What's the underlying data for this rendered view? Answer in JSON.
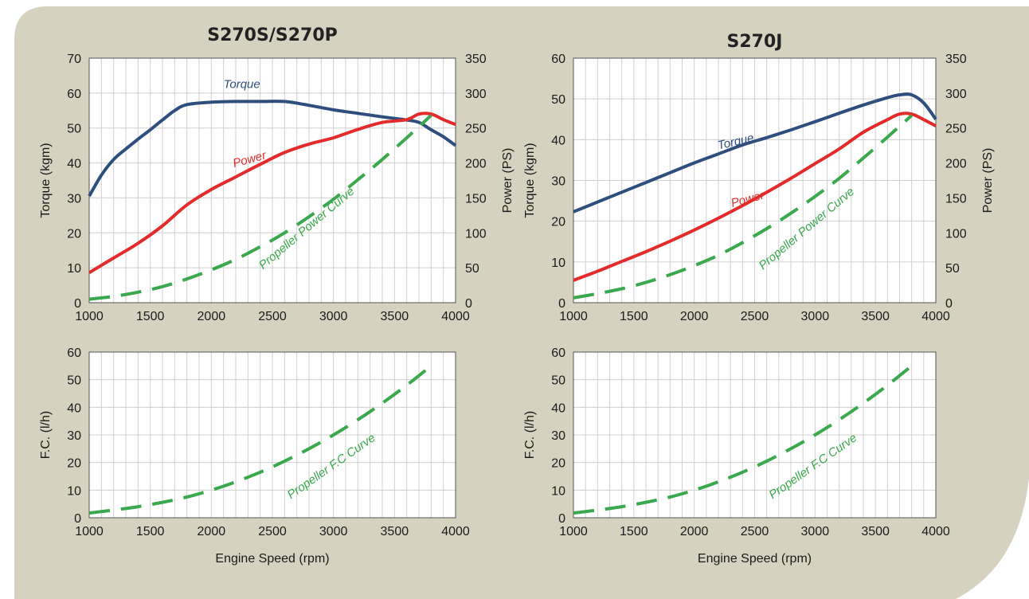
{
  "colors": {
    "panel_bg": "#d6d2c0",
    "plot_bg": "#ffffff",
    "grid": "#d0d0d0",
    "torque": "#2e4e7e",
    "power": "#e32b2b",
    "propeller": "#3aa84d",
    "text": "#1a1a1a"
  },
  "titles": {
    "left": "S270S/S270P",
    "right": "S270J"
  },
  "chart_data": [
    {
      "type": "line",
      "title": "S270S/S270P",
      "xlabel": "",
      "ylabel": "Torque (kgm)",
      "y2label": "Power (PS)",
      "xlim": [
        1000,
        4000
      ],
      "xticks": [
        1000,
        1500,
        2000,
        2500,
        3000,
        3500,
        4000
      ],
      "ylim": [
        0,
        70
      ],
      "yticks": [
        0,
        10,
        20,
        30,
        40,
        50,
        60,
        70
      ],
      "y2lim": [
        0,
        350
      ],
      "y2ticks": [
        0,
        50,
        100,
        150,
        200,
        250,
        300,
        350
      ],
      "grid": true,
      "series": [
        {
          "name": "Torque",
          "axis": "left",
          "style": "solid",
          "color_key": "torque",
          "x": [
            1000,
            1100,
            1200,
            1300,
            1400,
            1500,
            1600,
            1700,
            1800,
            2000,
            2200,
            2400,
            2600,
            2800,
            3000,
            3200,
            3400,
            3600,
            3700,
            3800,
            3900,
            4000
          ],
          "y": [
            30.5,
            36.5,
            41,
            44,
            46.8,
            49.5,
            52.3,
            55,
            56.7,
            57.4,
            57.6,
            57.6,
            57.6,
            56.5,
            55.2,
            54.2,
            53.2,
            52.3,
            51.6,
            49.5,
            47.5,
            45
          ]
        },
        {
          "name": "Power",
          "axis": "right",
          "style": "solid",
          "color_key": "power",
          "x": [
            1000,
            1200,
            1400,
            1600,
            1800,
            2000,
            2200,
            2400,
            2600,
            2800,
            3000,
            3200,
            3400,
            3600,
            3700,
            3800,
            3900,
            4000
          ],
          "y": [
            43,
            64,
            85,
            110,
            140,
            162,
            180,
            198,
            215,
            227,
            236,
            248,
            258,
            262,
            270,
            270,
            262,
            255
          ]
        },
        {
          "name": "Propeller Power Curve",
          "axis": "right",
          "style": "dashed",
          "color_key": "propeller",
          "x": [
            1000,
            1200,
            1400,
            1600,
            1800,
            2000,
            2200,
            2400,
            2600,
            2800,
            3000,
            3200,
            3400,
            3600,
            3800
          ],
          "y": [
            5,
            9,
            15,
            23,
            34,
            47,
            62,
            80,
            100,
            123,
            148,
            176,
            205,
            236,
            268
          ]
        }
      ],
      "annotations": [
        {
          "text": "Torque",
          "x": 2250,
          "y": 61.5,
          "color_key": "torque",
          "rotate": 0
        },
        {
          "text": "Power",
          "x": 2320,
          "y": 40,
          "color_key": "power",
          "rotate": -15
        },
        {
          "text": "Propeller Power Curve",
          "x": 2800,
          "y": 20.5,
          "color_key": "propeller",
          "rotate": -40
        }
      ]
    },
    {
      "type": "line",
      "title": "S270J",
      "xlabel": "",
      "ylabel": "Torque (kgm)",
      "y2label": "Power (PS)",
      "xlim": [
        1000,
        4000
      ],
      "xticks": [
        1000,
        1500,
        2000,
        2500,
        3000,
        3500,
        4000
      ],
      "ylim": [
        0,
        60
      ],
      "yticks": [
        0,
        10,
        20,
        30,
        40,
        50,
        60
      ],
      "y2lim": [
        0,
        350
      ],
      "y2ticks": [
        0,
        50,
        100,
        150,
        200,
        250,
        300,
        350
      ],
      "grid": true,
      "series": [
        {
          "name": "Torque",
          "axis": "left",
          "style": "solid",
          "color_key": "torque",
          "x": [
            1000,
            1200,
            1400,
            1600,
            1800,
            2000,
            2200,
            2400,
            2600,
            2800,
            3000,
            3200,
            3400,
            3600,
            3700,
            3800,
            3900,
            4000
          ],
          "y": [
            22.3,
            24.7,
            27.1,
            29.5,
            31.9,
            34.3,
            36.5,
            38.7,
            40.5,
            42.4,
            44.4,
            46.5,
            48.5,
            50.3,
            51,
            51,
            49,
            45
          ]
        },
        {
          "name": "Power",
          "axis": "right",
          "style": "solid",
          "color_key": "power",
          "x": [
            1000,
            1200,
            1400,
            1600,
            1800,
            2000,
            2200,
            2400,
            2600,
            2800,
            3000,
            3200,
            3400,
            3600,
            3700,
            3800,
            3900,
            4000
          ],
          "y": [
            32,
            45,
            59,
            73,
            88,
            104,
            121,
            139,
            158,
            178,
            199,
            220,
            244,
            262,
            270,
            270,
            262,
            253
          ]
        },
        {
          "name": "Propeller Power Curve",
          "axis": "right",
          "style": "dashed",
          "color_key": "propeller",
          "x": [
            1000,
            1200,
            1400,
            1600,
            1800,
            2000,
            2200,
            2400,
            2600,
            2800,
            3000,
            3200,
            3400,
            3600,
            3800
          ],
          "y": [
            7,
            13,
            20,
            29,
            40,
            53,
            68,
            86,
            106,
            128,
            152,
            178,
            207,
            237,
            268
          ]
        }
      ],
      "annotations": [
        {
          "text": "Torque",
          "x": 2350,
          "y": 38.6,
          "color_key": "torque",
          "rotate": -13
        },
        {
          "text": "Power",
          "x": 2450,
          "y": 24.5,
          "color_key": "power",
          "rotate": -15
        },
        {
          "text": "Propeller Power Curve",
          "x": 2950,
          "y": 17.5,
          "color_key": "propeller",
          "rotate": -40
        }
      ]
    },
    {
      "type": "line",
      "title": "",
      "xlabel": "Engine Speed (rpm)",
      "ylabel": "F.C.  (l/h)",
      "xlim": [
        1000,
        4000
      ],
      "xticks": [
        1000,
        1500,
        2000,
        2500,
        3000,
        3500,
        4000
      ],
      "ylim": [
        0,
        60
      ],
      "yticks": [
        0,
        10,
        20,
        30,
        40,
        50,
        60
      ],
      "grid": true,
      "series": [
        {
          "name": "Propeller F.C Curve",
          "axis": "left",
          "style": "dashed",
          "color_key": "propeller",
          "x": [
            1000,
            1200,
            1400,
            1600,
            1800,
            2000,
            2200,
            2400,
            2600,
            2800,
            3000,
            3200,
            3400,
            3600,
            3800
          ],
          "y": [
            1.7,
            2.8,
            4,
            5.6,
            7.5,
            10,
            13,
            16.5,
            20.5,
            25,
            30,
            35.5,
            41.5,
            48,
            55
          ]
        }
      ],
      "annotations": [
        {
          "text": "Propeller F.C Curve",
          "x": 3000,
          "y": 17.5,
          "color_key": "propeller",
          "rotate": -35
        }
      ]
    },
    {
      "type": "line",
      "title": "",
      "xlabel": "Engine Speed (rpm)",
      "ylabel": "F.C.  (l/h)",
      "xlim": [
        1000,
        4000
      ],
      "xticks": [
        1000,
        1500,
        2000,
        2500,
        3000,
        3500,
        4000
      ],
      "ylim": [
        0,
        60
      ],
      "yticks": [
        0,
        10,
        20,
        30,
        40,
        50,
        60
      ],
      "grid": true,
      "series": [
        {
          "name": "Propeller F.C Curve",
          "axis": "left",
          "style": "dashed",
          "color_key": "propeller",
          "x": [
            1000,
            1200,
            1400,
            1600,
            1800,
            2000,
            2200,
            2400,
            2600,
            2800,
            3000,
            3200,
            3400,
            3600,
            3800
          ],
          "y": [
            1.7,
            2.8,
            4,
            5.6,
            7.5,
            10,
            13,
            16.5,
            20.5,
            25,
            30,
            35.5,
            41.5,
            48,
            55
          ]
        }
      ],
      "annotations": [
        {
          "text": "Propeller F.C Curve",
          "x": 3000,
          "y": 17.5,
          "color_key": "propeller",
          "rotate": -35
        }
      ]
    }
  ]
}
